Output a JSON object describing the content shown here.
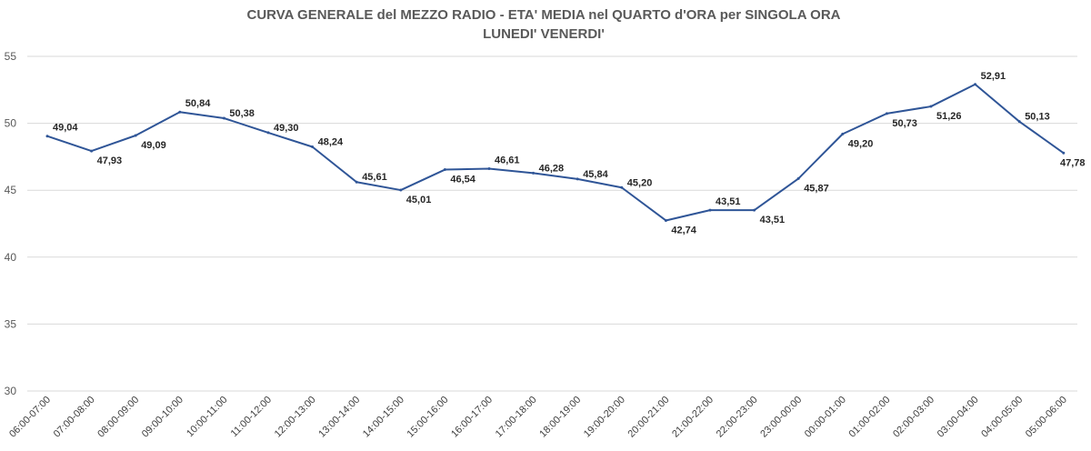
{
  "chart_data": {
    "type": "line",
    "title": "CURVA GENERALE del MEZZO RADIO - ETA' MEDIA nel QUARTO d'ORA per SINGOLA ORA",
    "subtitle": "LUNEDI' VENERDI'",
    "xlabel": "",
    "ylabel": "",
    "ylim": [
      30,
      55
    ],
    "yticks": [
      "30",
      "35",
      "40",
      "45",
      "50",
      "55"
    ],
    "grid": true,
    "legend": "none",
    "categories": [
      "06:00-07:00",
      "07:00-08:00",
      "08:00-09:00",
      "09:00-10:00",
      "10:00-11:00",
      "11:00-12:00",
      "12:00-13:00",
      "13:00-14:00",
      "14:00-15:00",
      "15:00-16:00",
      "16:00-17:00",
      "17:00-18:00",
      "18:00-19:00",
      "19:00-20:00",
      "20:00-21:00",
      "21:00-22:00",
      "22:00-23:00",
      "23:00-00:00",
      "00:00-01:00",
      "01:00-02:00",
      "02:00-03:00",
      "03:00-04:00",
      "04:00-05:00",
      "05:00-06:00"
    ],
    "values": [
      49.04,
      47.93,
      49.09,
      50.84,
      50.38,
      49.3,
      48.24,
      45.61,
      45.01,
      46.54,
      46.61,
      46.28,
      45.84,
      45.2,
      42.74,
      43.51,
      43.51,
      45.87,
      49.2,
      50.73,
      51.26,
      52.91,
      50.13,
      47.78
    ],
    "data_labels": [
      "49,04",
      "47,93",
      "49,09",
      "50,84",
      "50,38",
      "49,30",
      "48,24",
      "45,61",
      "45,01",
      "46,54",
      "46,61",
      "46,28",
      "45,84",
      "45,20",
      "42,74",
      "43,51",
      "43,51",
      "45,87",
      "49,20",
      "50,73",
      "51,26",
      "52,91",
      "50,13",
      "47,78"
    ],
    "colors": {
      "line": "#2f5597",
      "grid": "#d9d9d9",
      "title": "#595959"
    }
  }
}
